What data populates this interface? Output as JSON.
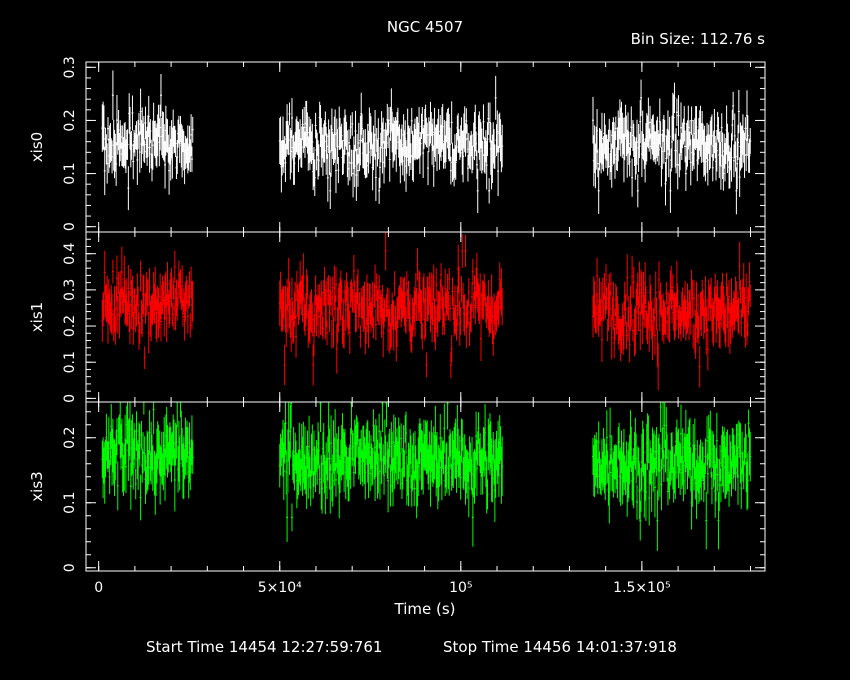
{
  "header": {
    "title": "NGC 4507",
    "bin_size": "Bin Size: 112.76 s"
  },
  "footer": {
    "start": "Start Time 14454 12:27:59:761",
    "stop": "Stop Time 14456 14:01:37:918"
  },
  "colors": {
    "background": "#000000",
    "axes": "#ffffff",
    "xis0": "#ffffff",
    "xis1": "#ff0000",
    "xis3": "#00ff00"
  },
  "chart_data": {
    "type": "scatter",
    "style": "light curve with vertical error bars",
    "xlabel": "Time (s)",
    "x_range": [
      -3500,
      184000
    ],
    "x_ticks": [
      {
        "value": 0,
        "label": "0"
      },
      {
        "value": 50000,
        "label": "5×10⁴"
      },
      {
        "value": 100000,
        "label": "10⁵"
      },
      {
        "value": 150000,
        "label": "1.5×10⁵"
      }
    ],
    "x_minor_step": 10000,
    "gaps_s": [
      [
        26000,
        50000
      ],
      [
        111500,
        136500
      ]
    ],
    "bin_size_s": 112.76,
    "panels": [
      {
        "name": "xis0",
        "ylabel": "xis0",
        "ylim": [
          -0.01,
          0.31
        ],
        "y_ticks": [
          0,
          0.1,
          0.2,
          0.3
        ],
        "y_minor_step": 0.02,
        "mean": 0.155,
        "scatter": 0.025,
        "err": 0.035,
        "segments": [
          {
            "x": [
              1000,
              26000
            ],
            "mean": 0.16
          },
          {
            "x": [
              50000,
              111500
            ],
            "mean": 0.155
          },
          {
            "x": [
              136500,
              180000
            ],
            "mean": 0.155
          }
        ]
      },
      {
        "name": "xis1",
        "ylabel": "xis1",
        "ylim": [
          -0.01,
          0.46
        ],
        "y_ticks": [
          0,
          0.1,
          0.2,
          0.3,
          0.4
        ],
        "y_minor_step": 0.02,
        "mean": 0.25,
        "scatter": 0.045,
        "err": 0.05,
        "segments": [
          {
            "x": [
              1000,
              26000
            ],
            "mean": 0.27
          },
          {
            "x": [
              50000,
              111500
            ],
            "mean": 0.25
          },
          {
            "x": [
              136500,
              180000
            ],
            "mean": 0.245
          }
        ]
      },
      {
        "name": "xis3",
        "ylabel": "xis3",
        "ylim": [
          -0.005,
          0.255
        ],
        "y_ticks": [
          0,
          0.1,
          0.2
        ],
        "y_minor_step": 0.02,
        "mean": 0.165,
        "scatter": 0.025,
        "err": 0.035,
        "segments": [
          {
            "x": [
              1000,
              26000
            ],
            "mean": 0.17
          },
          {
            "x": [
              50000,
              111500
            ],
            "mean": 0.165
          },
          {
            "x": [
              136500,
              180000
            ],
            "mean": 0.16
          }
        ]
      }
    ]
  }
}
